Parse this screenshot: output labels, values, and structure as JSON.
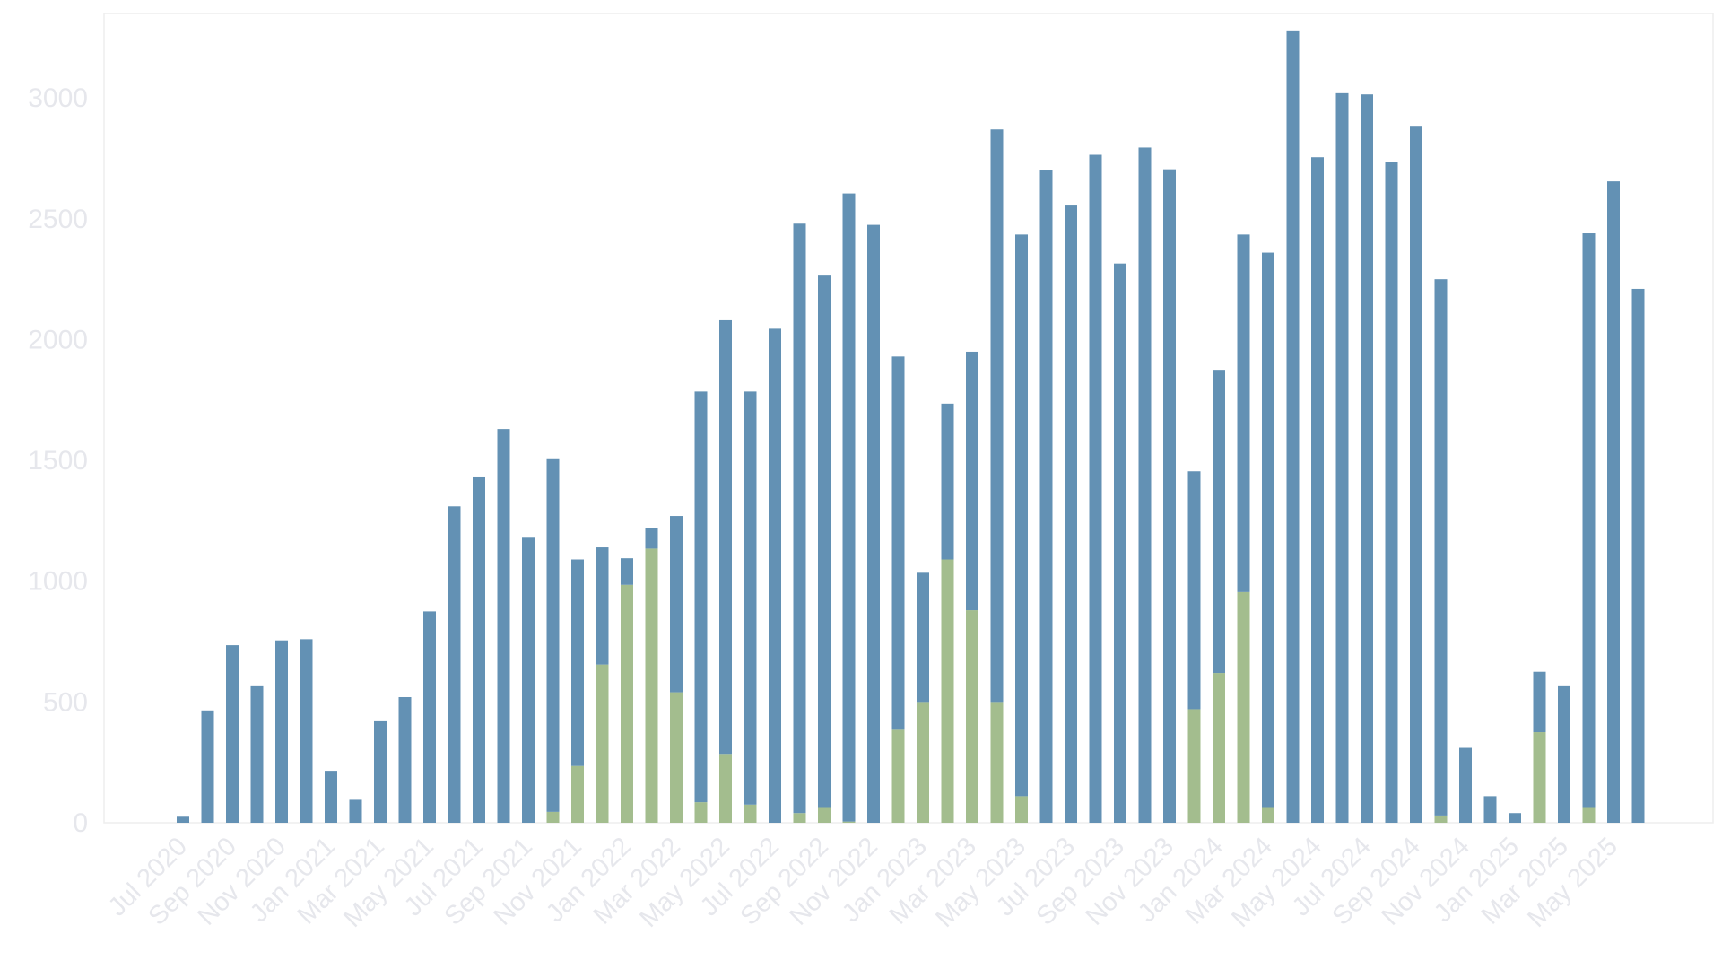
{
  "chart_data": {
    "type": "bar",
    "stacked": true,
    "title": "",
    "xlabel": "",
    "ylabel": "",
    "ylim": [
      0,
      3350
    ],
    "yticks": [
      0,
      500,
      1000,
      1500,
      2000,
      2500,
      3000
    ],
    "grid": false,
    "legend": "none",
    "x": [
      "Jul 2020",
      "Aug 2020",
      "Sep 2020",
      "Oct 2020",
      "Nov 2020",
      "Dec 2020",
      "Jan 2021",
      "Feb 2021",
      "Mar 2021",
      "Apr 2021",
      "May 2021",
      "Jun 2021",
      "Jul 2021",
      "Aug 2021",
      "Sep 2021",
      "Oct 2021",
      "Nov 2021",
      "Dec 2021",
      "Jan 2022",
      "Feb 2022",
      "Mar 2022",
      "Apr 2022",
      "May 2022",
      "Jun 2022",
      "Jul 2022",
      "Aug 2022",
      "Sep 2022",
      "Oct 2022",
      "Nov 2022",
      "Dec 2022",
      "Jan 2023",
      "Feb 2023",
      "Mar 2023",
      "Apr 2023",
      "May 2023",
      "Jun 2023",
      "Jul 2023",
      "Aug 2023",
      "Sep 2023",
      "Oct 2023",
      "Nov 2023",
      "Dec 2023",
      "Jan 2024",
      "Feb 2024",
      "Mar 2024",
      "Apr 2024",
      "May 2024",
      "Jun 2024",
      "Jul 2024",
      "Aug 2024",
      "Sep 2024",
      "Oct 2024",
      "Nov 2024",
      "Dec 2024",
      "Jan 2025",
      "Feb 2025",
      "Mar 2025",
      "Apr 2025",
      "May 2025",
      "Jun 2025"
    ],
    "xtick_labels_shown": [
      "Jul 2020",
      "Sep 2020",
      "Nov 2020",
      "Jan 2021",
      "Mar 2021",
      "May 2021",
      "Jul 2021",
      "Sep 2021",
      "Nov 2021",
      "Jan 2022",
      "Mar 2022",
      "May 2022",
      "Jul 2022",
      "Sep 2022",
      "Nov 2022",
      "Jan 2023",
      "Mar 2023",
      "May 2023",
      "Jul 2023",
      "Sep 2023",
      "Nov 2023",
      "Jan 2024",
      "Mar 2024",
      "May 2024",
      "Jul 2024",
      "Sep 2024",
      "Nov 2024",
      "Jan 2025",
      "Mar 2025",
      "May 2025"
    ],
    "series": [
      {
        "color": "#a3bd8e",
        "values": [
          0,
          0,
          0,
          0,
          0,
          0,
          0,
          0,
          0,
          0,
          0,
          0,
          0,
          0,
          0,
          45,
          235,
          655,
          985,
          1135,
          540,
          85,
          285,
          75,
          0,
          40,
          65,
          5,
          0,
          385,
          500,
          1090,
          880,
          500,
          110,
          0,
          0,
          0,
          0,
          0,
          0,
          470,
          620,
          955,
          65,
          0,
          0,
          0,
          0,
          0,
          0,
          30,
          0,
          0,
          0,
          375,
          0,
          65,
          0,
          0
        ]
      },
      {
        "color": "#6391b4",
        "values": [
          25,
          465,
          735,
          565,
          755,
          760,
          215,
          95,
          420,
          520,
          875,
          1310,
          1430,
          1630,
          1180,
          1460,
          855,
          485,
          110,
          85,
          730,
          1700,
          1795,
          1710,
          2045,
          2440,
          2200,
          2600,
          2475,
          1545,
          535,
          645,
          1070,
          2370,
          2325,
          2700,
          2555,
          2765,
          2315,
          2795,
          2705,
          985,
          1255,
          1480,
          2295,
          3280,
          2755,
          3020,
          3015,
          2735,
          2885,
          2220,
          310,
          110,
          40,
          250,
          565,
          2375,
          2655,
          2210
        ]
      }
    ]
  },
  "style": {
    "axis_color": "#eeeeee",
    "tick_color": "#e6e7ec",
    "background": "#ffffff"
  }
}
